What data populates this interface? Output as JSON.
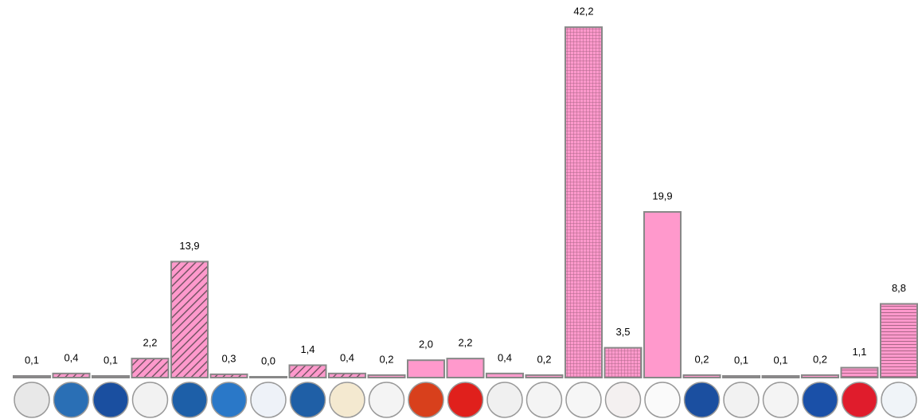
{
  "chart_data": {
    "type": "bar",
    "categories": [
      null,
      null,
      null,
      null,
      null,
      null,
      null,
      null,
      null,
      null,
      null,
      null,
      null,
      null,
      null,
      null,
      null,
      null,
      null,
      null,
      null,
      null,
      null
    ],
    "values": [
      0.1,
      0.4,
      0.1,
      2.2,
      13.9,
      0.3,
      0.0,
      1.4,
      0.4,
      0.2,
      2.0,
      2.2,
      0.4,
      0.2,
      42.2,
      3.5,
      19.9,
      0.2,
      0.1,
      0.1,
      0.2,
      1.1,
      8.8
    ],
    "value_labels": [
      "0,1",
      "0,4",
      "0,1",
      "2,2",
      "13,9",
      "0,3",
      "0,0",
      "1,4",
      "0,4",
      "0,2",
      "2,0",
      "2,2",
      "0,4",
      "0,2",
      "42,2",
      "3,5",
      "19,9",
      "0,2",
      "0,1",
      "0,1",
      "0,2",
      "1,1",
      "8,8"
    ],
    "patterns": [
      "solid",
      "diagonal",
      "solid",
      "diagonal",
      "diagonal",
      "diagonal",
      "solid",
      "diagonal",
      "diagonal",
      "solid",
      "solid",
      "solid",
      "solid",
      "solid",
      "grid",
      "grid",
      "solid",
      "solid",
      "solid",
      "solid",
      "solid",
      "horizontal",
      "horizontal"
    ],
    "color": "#ff99cc",
    "ylim": [
      0,
      45
    ]
  }
}
